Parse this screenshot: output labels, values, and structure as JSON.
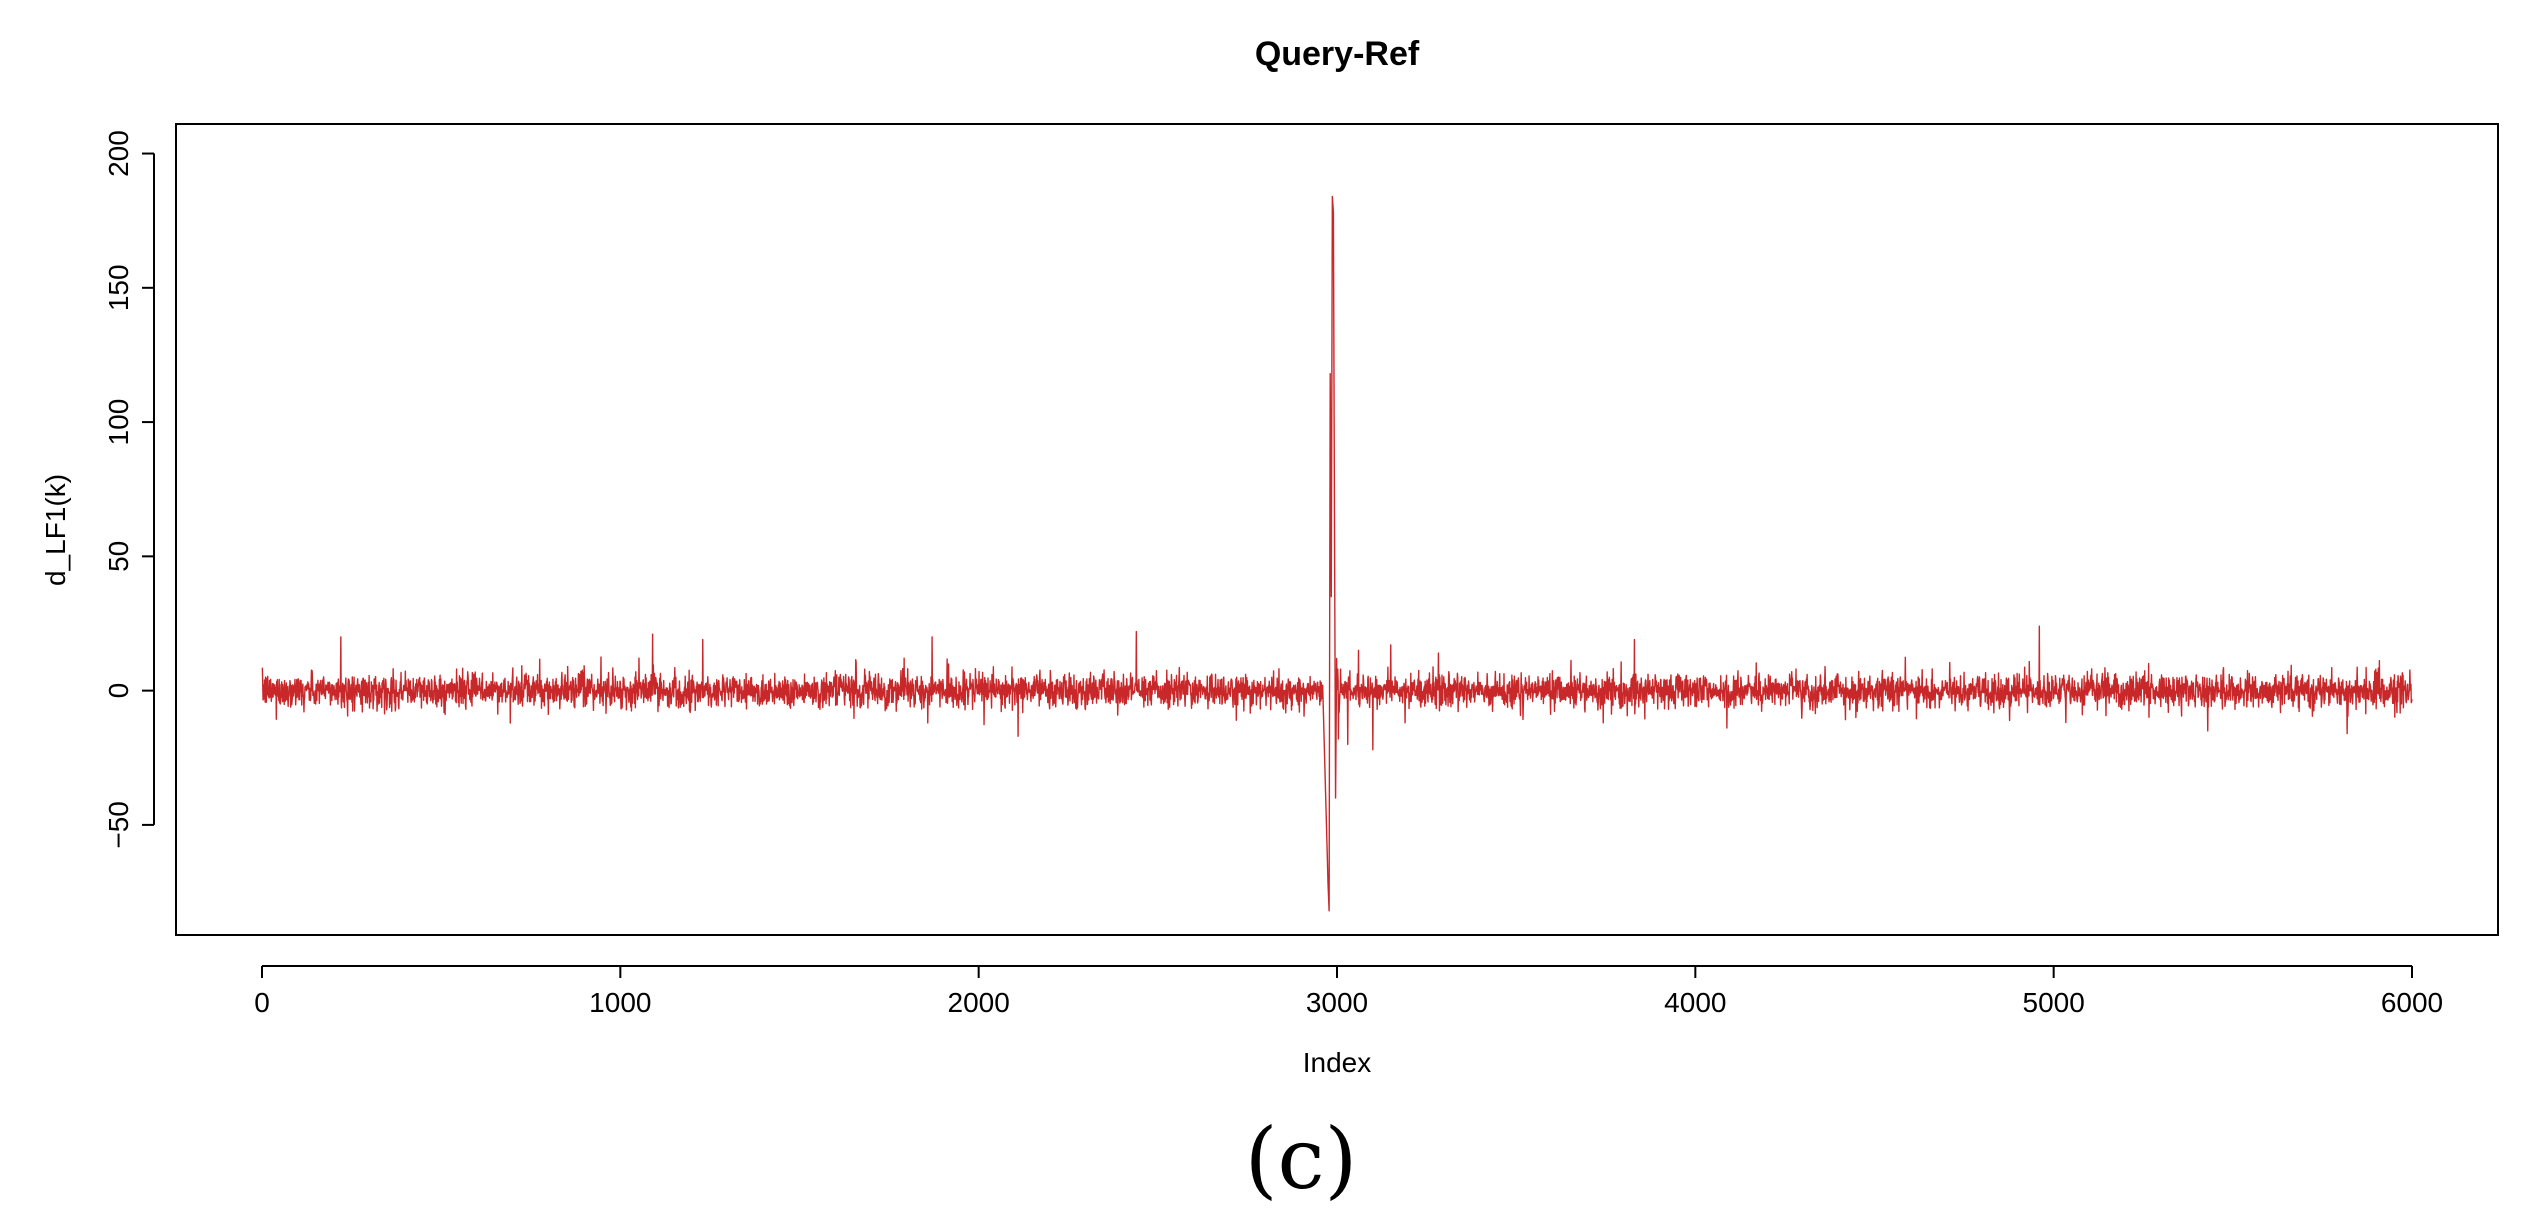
{
  "chart_data": {
    "type": "line",
    "title": "Query-Ref",
    "xlabel": "Index",
    "ylabel": "d_LF1(k)",
    "xlim": [
      -240,
      6240
    ],
    "ylim": [
      -91,
      211
    ],
    "x_ticks": [
      0,
      1000,
      2000,
      3000,
      4000,
      5000,
      6000
    ],
    "x_tick_labels": [
      "0",
      "1000",
      "2000",
      "3000",
      "4000",
      "5000",
      "6000"
    ],
    "y_ticks": [
      -50,
      0,
      50,
      100,
      150,
      200
    ],
    "y_tick_labels": [
      "−50",
      "0",
      "50",
      "100",
      "150",
      "200"
    ],
    "grid": false,
    "legend": "none",
    "series": [
      {
        "color": "#c8282a",
        "n_points": 6000,
        "x_start": 1,
        "x_end": 6000,
        "typical_amplitude": 8,
        "background_peaks": [
          {
            "x": 220,
            "y": 20
          },
          {
            "x": 1090,
            "y": 21
          },
          {
            "x": 1230,
            "y": 19
          },
          {
            "x": 1870,
            "y": 20
          },
          {
            "x": 2110,
            "y": -17
          },
          {
            "x": 2440,
            "y": 22
          },
          {
            "x": 3830,
            "y": 19
          },
          {
            "x": 4960,
            "y": 24
          },
          {
            "x": 5430,
            "y": -15
          }
        ],
        "event_points": [
          {
            "x": 2960,
            "y": 2
          },
          {
            "x": 2975,
            "y": -72
          },
          {
            "x": 2978,
            "y": -82
          },
          {
            "x": 2981,
            "y": 118
          },
          {
            "x": 2984,
            "y": 35
          },
          {
            "x": 2987,
            "y": 184
          },
          {
            "x": 2990,
            "y": 178
          },
          {
            "x": 2993,
            "y": 62
          },
          {
            "x": 2996,
            "y": -40
          },
          {
            "x": 2999,
            "y": 12
          },
          {
            "x": 3004,
            "y": -18
          },
          {
            "x": 3010,
            "y": 8
          },
          {
            "x": 3030,
            "y": -20
          },
          {
            "x": 3060,
            "y": 15
          },
          {
            "x": 3100,
            "y": -22
          },
          {
            "x": 3150,
            "y": 17
          },
          {
            "x": 3190,
            "y": -12
          }
        ]
      }
    ]
  },
  "panel_label": "(c)"
}
